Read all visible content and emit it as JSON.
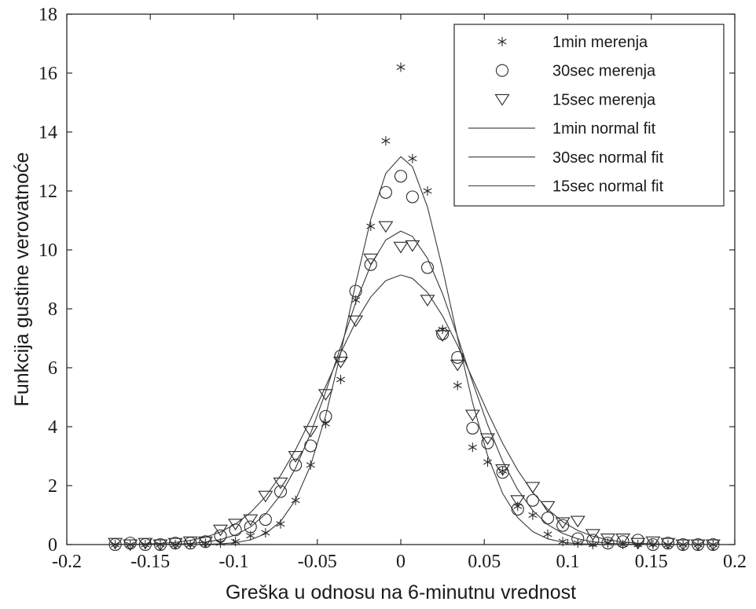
{
  "chart_data": {
    "type": "scatter",
    "title": "",
    "xlabel": "Greška u odnosu na 6-minutnu vrednost",
    "ylabel": "Funkcija gustine verovatnoće",
    "xlim": [
      -0.2,
      0.2
    ],
    "ylim": [
      0,
      18
    ],
    "xticks": [
      -0.2,
      -0.15,
      -0.1,
      -0.05,
      0,
      0.05,
      0.1,
      0.15,
      0.2
    ],
    "xtick_labels": [
      "-0.2",
      "-0.15",
      "-0.1",
      "-0.05",
      "0",
      "0.05",
      "0.1",
      "0.15",
      "0.2"
    ],
    "yticks": [
      0,
      2,
      4,
      6,
      8,
      10,
      12,
      14,
      16,
      18
    ],
    "ytick_labels": [
      "0",
      "2",
      "4",
      "6",
      "8",
      "10",
      "12",
      "14",
      "16",
      "18"
    ],
    "grid": false,
    "legend_position": "top-right",
    "series": [
      {
        "name": "1min merenja",
        "kind": "markers",
        "marker": "asterisk",
        "x": [
          -0.171,
          -0.162,
          -0.153,
          -0.144,
          -0.135,
          -0.126,
          -0.117,
          -0.108,
          -0.099,
          -0.09,
          -0.081,
          -0.072,
          -0.063,
          -0.054,
          -0.045,
          -0.036,
          -0.027,
          -0.018,
          -0.009,
          0.0,
          0.007,
          0.016,
          0.025,
          0.034,
          0.043,
          0.052,
          0.061,
          0.07,
          0.079,
          0.088,
          0.097,
          0.106,
          0.115,
          0.124,
          0.133,
          0.142,
          0.151,
          0.16,
          0.169,
          0.178,
          0.187
        ],
        "y": [
          0.0,
          0.0,
          0.0,
          0.0,
          0.0,
          0.0,
          0.05,
          0.05,
          0.1,
          0.3,
          0.4,
          0.7,
          1.5,
          2.7,
          4.1,
          5.6,
          8.3,
          10.8,
          13.7,
          16.2,
          13.1,
          12.0,
          7.3,
          5.4,
          3.3,
          2.8,
          2.5,
          1.3,
          1.0,
          0.35,
          0.1,
          0.05,
          0.0,
          0.05,
          0.0,
          0.0,
          0.0,
          0.0,
          0.0,
          0.0,
          0.0
        ]
      },
      {
        "name": "30sec merenja",
        "kind": "markers",
        "marker": "circle",
        "x": [
          -0.171,
          -0.162,
          -0.153,
          -0.144,
          -0.135,
          -0.126,
          -0.117,
          -0.108,
          -0.099,
          -0.09,
          -0.081,
          -0.072,
          -0.063,
          -0.054,
          -0.045,
          -0.036,
          -0.027,
          -0.018,
          -0.009,
          0.0,
          0.007,
          0.016,
          0.025,
          0.034,
          0.043,
          0.052,
          0.061,
          0.07,
          0.079,
          0.088,
          0.097,
          0.106,
          0.115,
          0.124,
          0.133,
          0.142,
          0.151,
          0.16,
          0.169,
          0.178,
          0.187
        ],
        "y": [
          0.0,
          0.05,
          0.0,
          0.0,
          0.05,
          0.05,
          0.1,
          0.3,
          0.5,
          0.6,
          0.85,
          1.8,
          2.7,
          3.35,
          4.35,
          6.4,
          8.6,
          9.5,
          11.95,
          12.5,
          11.8,
          9.4,
          7.15,
          6.35,
          3.95,
          3.45,
          2.45,
          1.2,
          1.5,
          0.9,
          0.65,
          0.2,
          0.15,
          0.05,
          0.1,
          0.15,
          0.0,
          0.05,
          0.0,
          0.0,
          0.0
        ]
      },
      {
        "name": "15sec merenja",
        "kind": "markers",
        "marker": "triangle-down",
        "x": [
          -0.171,
          -0.162,
          -0.153,
          -0.144,
          -0.135,
          -0.126,
          -0.117,
          -0.108,
          -0.099,
          -0.09,
          -0.081,
          -0.072,
          -0.063,
          -0.054,
          -0.045,
          -0.036,
          -0.027,
          -0.018,
          -0.009,
          0.0,
          0.007,
          0.016,
          0.025,
          0.034,
          0.043,
          0.052,
          0.061,
          0.07,
          0.079,
          0.088,
          0.097,
          0.106,
          0.115,
          0.124,
          0.133,
          0.142,
          0.151,
          0.16,
          0.169,
          0.178,
          0.187
        ],
        "y": [
          0.05,
          0.0,
          0.05,
          0.0,
          0.05,
          0.1,
          0.1,
          0.5,
          0.7,
          0.85,
          1.65,
          2.1,
          3.0,
          3.85,
          5.1,
          6.2,
          7.6,
          9.7,
          10.8,
          10.1,
          10.15,
          8.3,
          7.1,
          6.1,
          4.4,
          3.6,
          2.55,
          1.5,
          1.95,
          1.3,
          0.75,
          0.8,
          0.35,
          0.2,
          0.2,
          0.05,
          0.1,
          0.05,
          0.0,
          0.0,
          0.0
        ]
      },
      {
        "name": "1min normal fit",
        "kind": "line",
        "mu": 0.0,
        "sigma": 0.0303,
        "x_range": [
          -0.171,
          0.187
        ]
      },
      {
        "name": "30sec normal fit",
        "kind": "line",
        "mu": 0.0,
        "sigma": 0.0375,
        "x_range": [
          -0.171,
          0.187
        ]
      },
      {
        "name": "15sec normal fit",
        "kind": "line",
        "mu": 0.0,
        "sigma": 0.0436,
        "x_range": [
          -0.171,
          0.187
        ]
      }
    ]
  }
}
